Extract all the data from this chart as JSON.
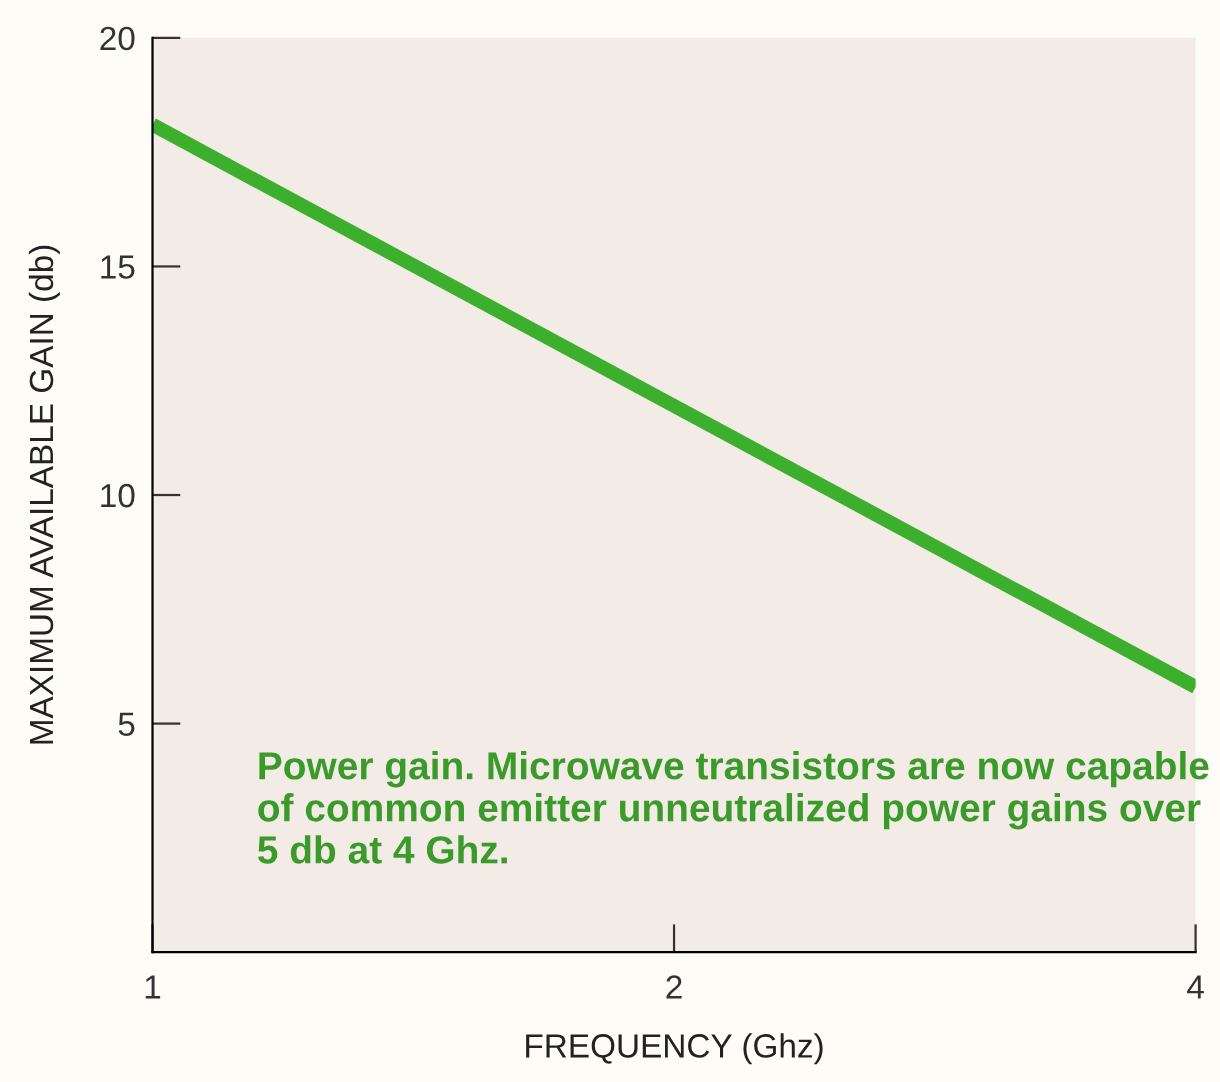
{
  "chart_data": {
    "type": "line",
    "xlabel": "FREQUENCY (Ghz)",
    "ylabel": "MAXIMUM AVAILABLE GAIN (db)",
    "x": [
      1,
      4
    ],
    "log": "x",
    "series": [
      {
        "color": "#3cb02c",
        "values": [
          18.1,
          5.8
        ]
      }
    ],
    "xlim": [
      1,
      4
    ],
    "xticks": [
      1,
      2,
      4
    ],
    "ylim": [
      0,
      20
    ],
    "yticks": [
      5,
      10,
      15,
      20
    ],
    "grid": false,
    "marker": "none",
    "line_style": "solid",
    "annotations": [
      "Power gain. Microwave transistors are now capable of common emitter unneutralized power gains over 5 db at 4 Ghz."
    ]
  }
}
